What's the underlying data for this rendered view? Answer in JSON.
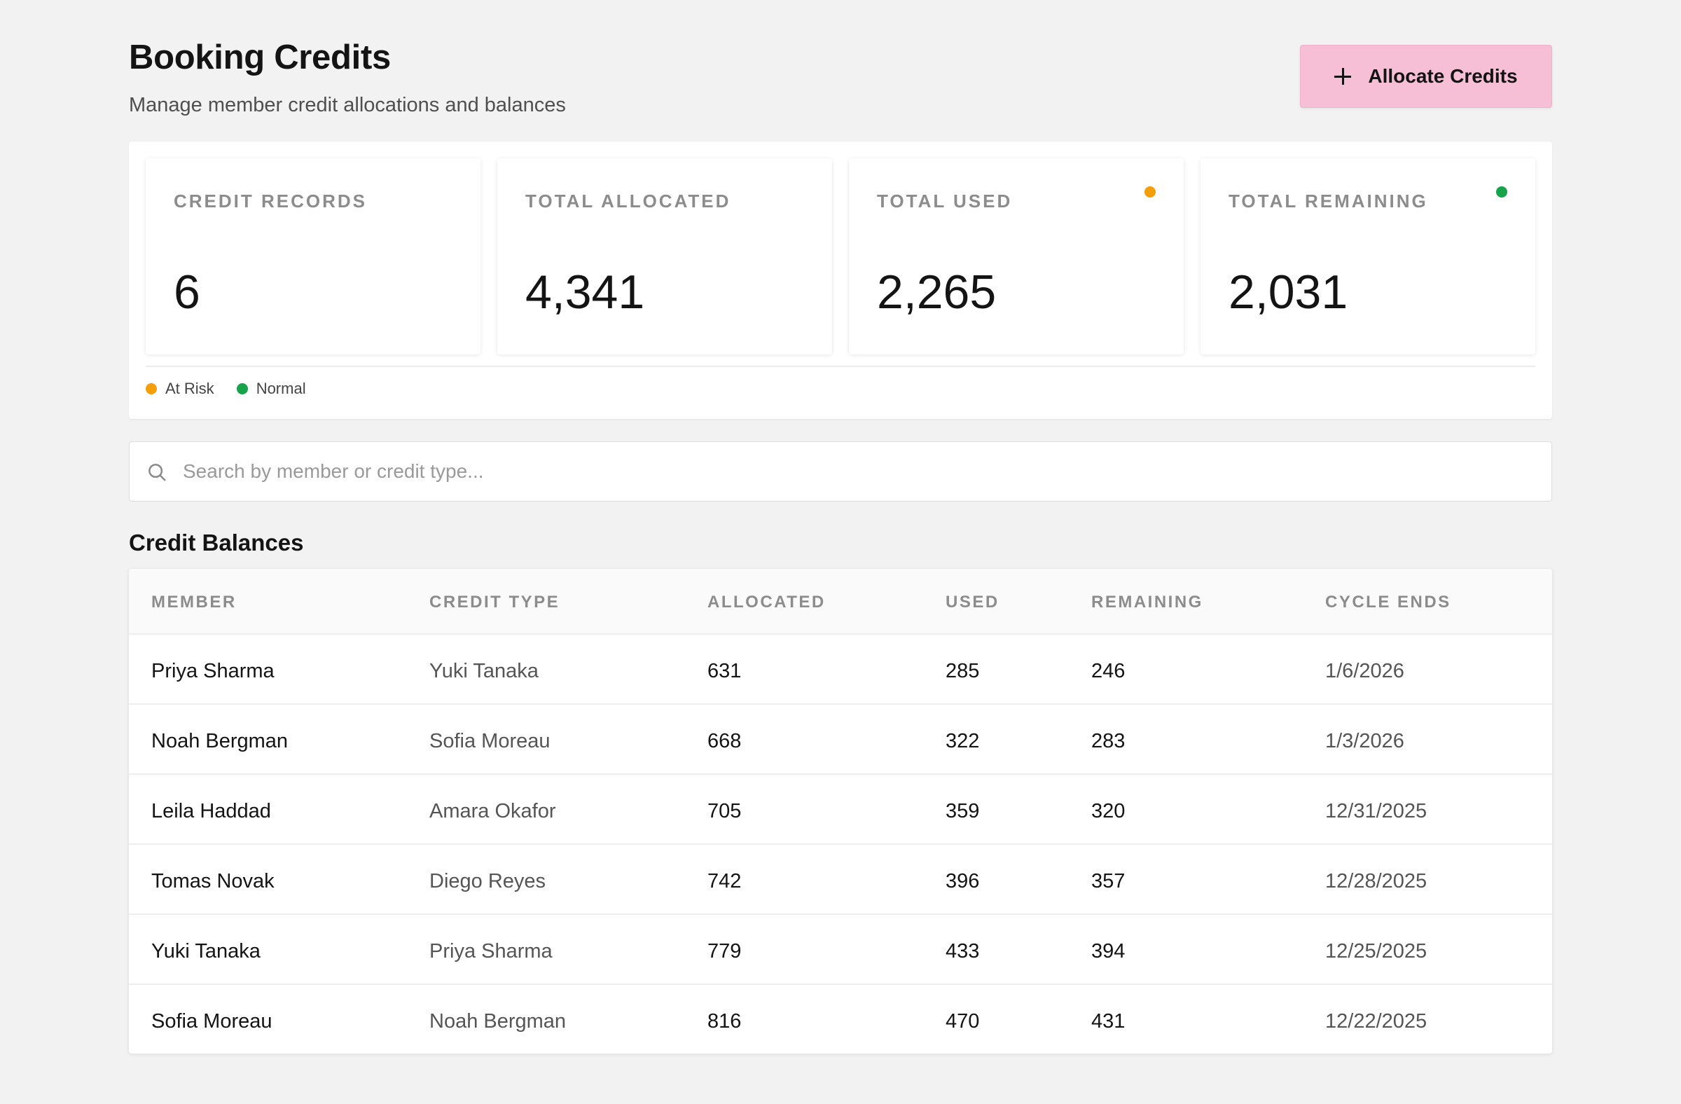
{
  "header": {
    "title": "Booking Credits",
    "subtitle": "Manage member credit allocations and balances",
    "allocate_label": "Allocate Credits",
    "allocate_icon": "plus-icon"
  },
  "stats": [
    {
      "label": "CREDIT RECORDS",
      "value": "6"
    },
    {
      "label": "TOTAL ALLOCATED",
      "value": "4,341"
    },
    {
      "label": "TOTAL USED",
      "value": "2,265",
      "indicator_color": "#f59e0b"
    },
    {
      "label": "TOTAL REMAINING",
      "value": "2,031",
      "indicator_color": "#16a34a"
    }
  ],
  "legend": [
    {
      "label": "At Risk",
      "color": "#f59e0b"
    },
    {
      "label": "Normal",
      "color": "#16a34a"
    }
  ],
  "search": {
    "placeholder": "Search by member or credit type...",
    "value": "",
    "icon": "search-icon"
  },
  "table": {
    "title": "Credit Balances",
    "columns": [
      "MEMBER",
      "CREDIT TYPE",
      "ALLOCATED",
      "USED",
      "REMAINING",
      "CYCLE ENDS"
    ],
    "rows": [
      [
        "Priya Sharma",
        "Yuki Tanaka",
        "631",
        "285",
        "246",
        "1/6/2026"
      ],
      [
        "Noah Bergman",
        "Sofia Moreau",
        "668",
        "322",
        "283",
        "1/3/2026"
      ],
      [
        "Leila Haddad",
        "Amara Okafor",
        "705",
        "359",
        "320",
        "12/31/2025"
      ],
      [
        "Tomas Novak",
        "Diego Reyes",
        "742",
        "396",
        "357",
        "12/28/2025"
      ],
      [
        "Yuki Tanaka",
        "Priya Sharma",
        "779",
        "433",
        "394",
        "12/25/2025"
      ],
      [
        "Sofia Moreau",
        "Noah Bergman",
        "816",
        "470",
        "431",
        "12/22/2025"
      ]
    ]
  },
  "colors": {
    "accent_button": "#f6bfd6",
    "background": "#f2f2f2",
    "at_risk": "#f59e0b",
    "normal": "#16a34a"
  }
}
